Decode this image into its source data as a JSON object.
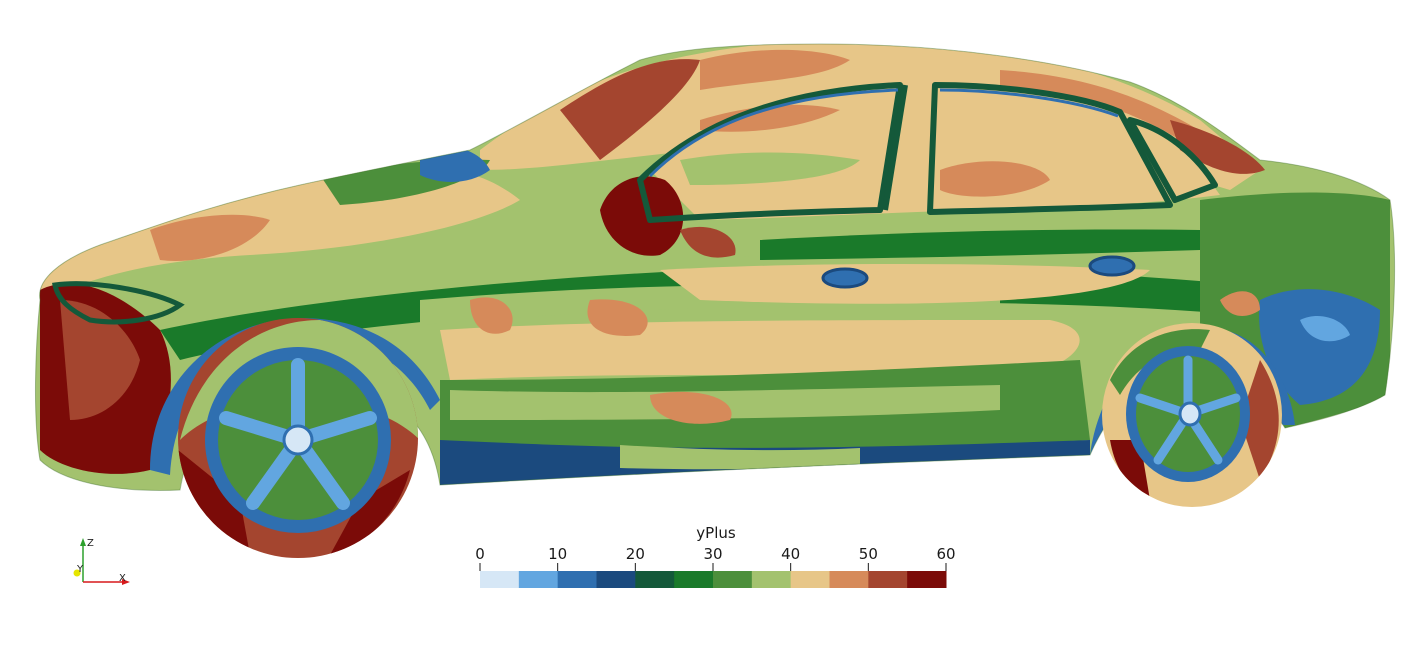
{
  "scalar_field": "yPlus",
  "colorbar": {
    "title": "yPlus",
    "range": [
      0,
      60
    ],
    "tick_labels": [
      "0",
      "10",
      "20",
      "30",
      "40",
      "50",
      "60"
    ],
    "tick_values": [
      0,
      10,
      20,
      30,
      40,
      50,
      60
    ],
    "bands": [
      {
        "from": 0,
        "to": 5,
        "color": "#d6e7f6"
      },
      {
        "from": 5,
        "to": 10,
        "color": "#62a6e0"
      },
      {
        "from": 10,
        "to": 15,
        "color": "#2f6fb0"
      },
      {
        "from": 15,
        "to": 20,
        "color": "#1b4a7e"
      },
      {
        "from": 20,
        "to": 25,
        "color": "#14593a"
      },
      {
        "from": 25,
        "to": 30,
        "color": "#1a7a2a"
      },
      {
        "from": 30,
        "to": 35,
        "color": "#4c8f3b"
      },
      {
        "from": 35,
        "to": 40,
        "color": "#a3c26e"
      },
      {
        "from": 40,
        "to": 45,
        "color": "#e7c688"
      },
      {
        "from": 45,
        "to": 50,
        "color": "#d68a5a"
      },
      {
        "from": 50,
        "to": 55,
        "color": "#a4452f"
      },
      {
        "from": 55,
        "to": 60,
        "color": "#7b0b08"
      }
    ]
  },
  "orientation_axes": {
    "labels": {
      "z": "Z",
      "y": "Y",
      "x": "X"
    },
    "colors": {
      "x": "#d7191c",
      "y": "#e6e600",
      "z": "#2ca02c"
    }
  },
  "palette": {
    "wheel_blue": "#2f6fb0",
    "wheel_light": "#62a6e0",
    "pale": "#d6e7f6",
    "dark_blue": "#1b4a7e",
    "dark_green": "#14593a",
    "green": "#1a7a2a",
    "mid_green": "#4c8f3b",
    "light_green": "#a3c26e",
    "tan": "#e7c688",
    "orange": "#d68a5a",
    "brick": "#a4452f",
    "maroon": "#7b0b08"
  }
}
